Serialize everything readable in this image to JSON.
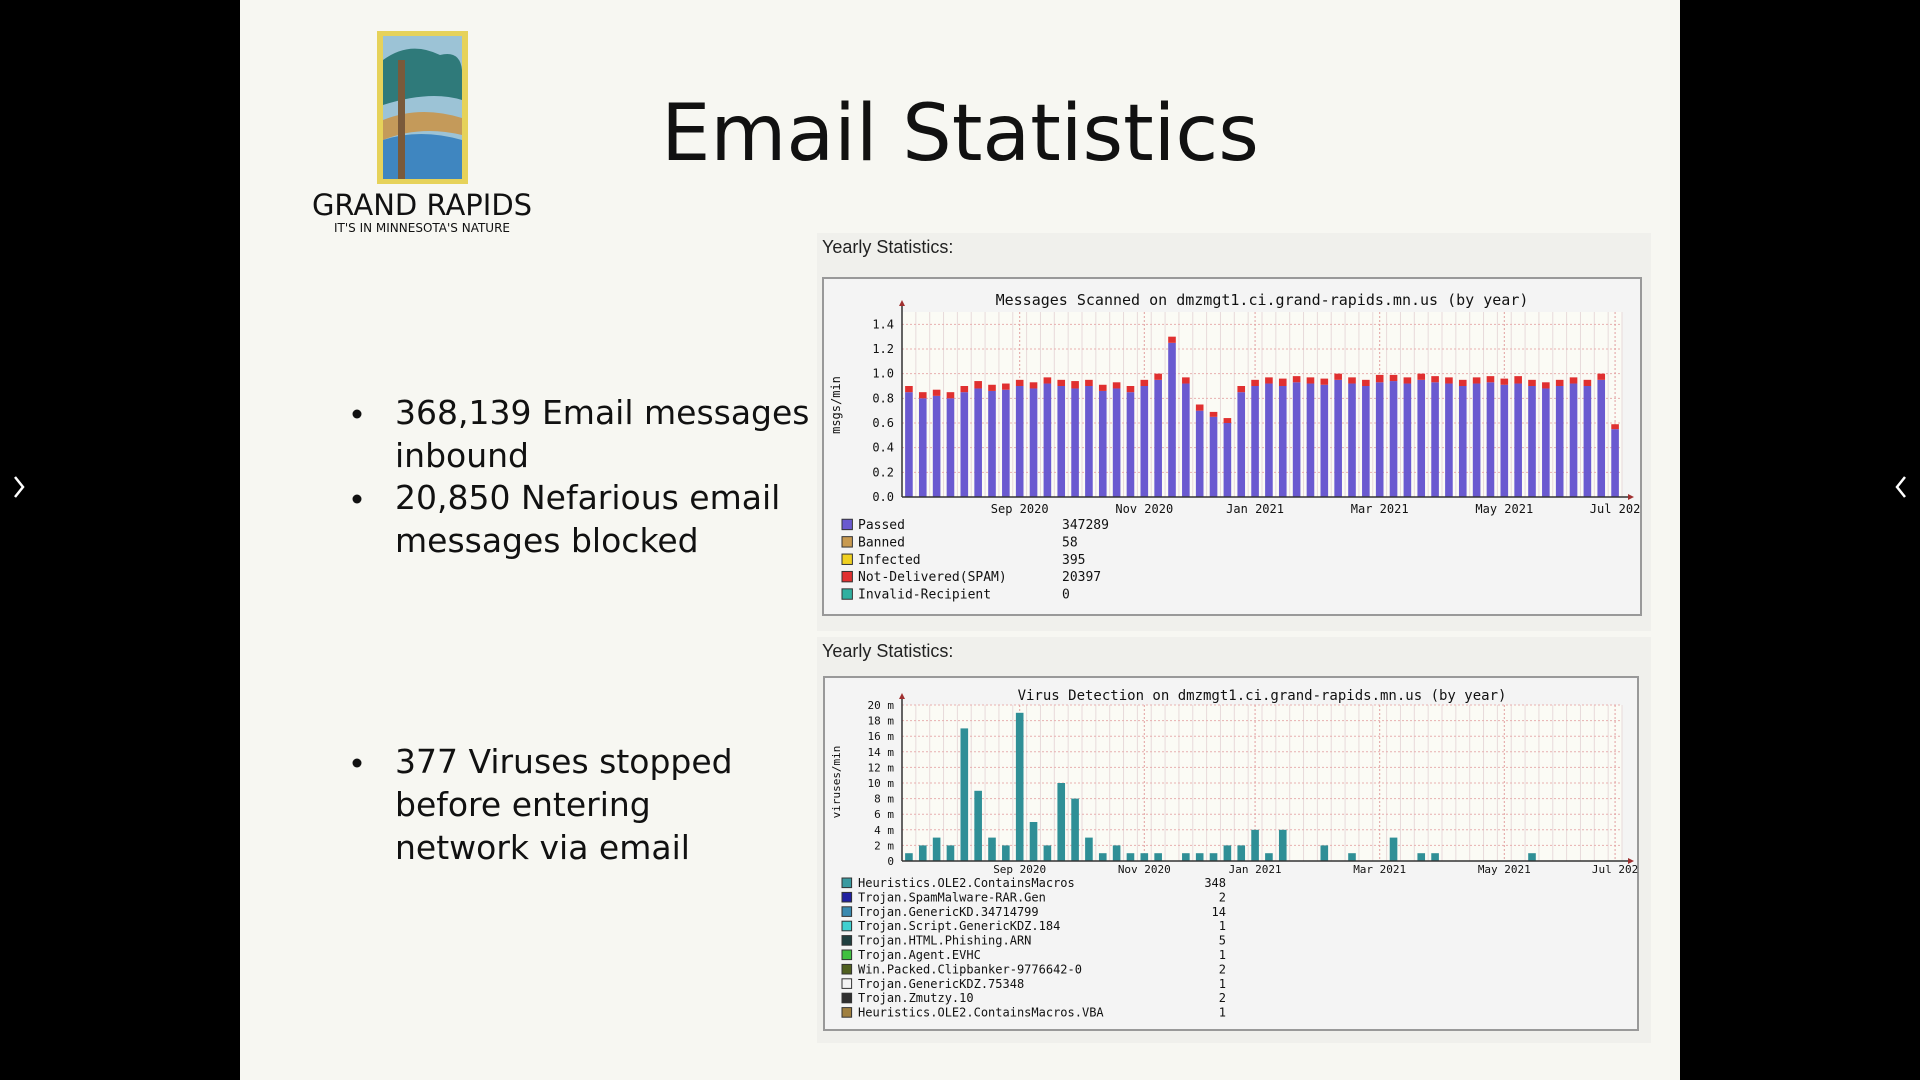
{
  "slide": {
    "title": "Email Statistics",
    "logo": {
      "name": "GRAND RAPIDS",
      "tagline": "IT'S IN MINNESOTA'S NATURE"
    },
    "bullets": [
      [
        "368,139 Email messages",
        "inbound"
      ],
      [
        "20,850 Nefarious email",
        "messages blocked"
      ],
      [
        "377 Viruses stopped",
        "before entering",
        "network via email"
      ]
    ]
  },
  "chart_data": [
    {
      "type": "bar",
      "caption": "Yearly Statistics:",
      "title": "Messages Scanned on dmzmgt1.ci.grand-rapids.mn.us (by year)",
      "y_label": "msgs/min",
      "categories": [
        null,
        null,
        null,
        null,
        null,
        null,
        null,
        null,
        "Sep 2020",
        null,
        null,
        null,
        null,
        null,
        null,
        null,
        null,
        "Nov 2020",
        null,
        null,
        null,
        null,
        null,
        null,
        null,
        "Jan 2021",
        null,
        null,
        null,
        null,
        null,
        null,
        null,
        null,
        "Mar 2021",
        null,
        null,
        null,
        null,
        null,
        null,
        null,
        null,
        "May 2021",
        null,
        null,
        null,
        null,
        null,
        null,
        null,
        "Jul 202"
      ],
      "series": [
        {
          "name": "Passed",
          "color": "#6a5ad0",
          "total": 347289,
          "values": [
            0.85,
            0.8,
            0.82,
            0.8,
            0.85,
            0.88,
            0.86,
            0.87,
            0.9,
            0.88,
            0.92,
            0.9,
            0.88,
            0.9,
            0.86,
            0.88,
            0.85,
            0.9,
            0.95,
            1.25,
            0.92,
            0.7,
            0.65,
            0.6,
            0.85,
            0.9,
            0.92,
            0.9,
            0.93,
            0.92,
            0.91,
            0.95,
            0.92,
            0.9,
            0.93,
            0.94,
            0.92,
            0.95,
            0.93,
            0.92,
            0.9,
            0.92,
            0.93,
            0.91,
            0.92,
            0.9,
            0.88,
            0.9,
            0.92,
            0.9,
            0.95,
            0.55
          ]
        },
        {
          "name": "Banned",
          "color": "#c89a50",
          "total": 58
        },
        {
          "name": "Infected",
          "color": "#f0d020",
          "total": 395
        },
        {
          "name": "Not-Delivered(SPAM)",
          "color": "#e03030",
          "total": 20397,
          "values": [
            0.05,
            0.05,
            0.05,
            0.05,
            0.05,
            0.06,
            0.05,
            0.05,
            0.05,
            0.05,
            0.05,
            0.05,
            0.06,
            0.05,
            0.05,
            0.05,
            0.05,
            0.05,
            0.05,
            0.05,
            0.05,
            0.05,
            0.04,
            0.04,
            0.05,
            0.05,
            0.05,
            0.06,
            0.05,
            0.05,
            0.05,
            0.05,
            0.05,
            0.05,
            0.06,
            0.05,
            0.05,
            0.05,
            0.05,
            0.05,
            0.05,
            0.05,
            0.05,
            0.05,
            0.06,
            0.05,
            0.05,
            0.05,
            0.05,
            0.05,
            0.05,
            0.04
          ]
        },
        {
          "name": "Invalid-Recipient",
          "color": "#30b0a0",
          "total": 0
        }
      ],
      "ylim": [
        0,
        1.5
      ],
      "yticks": [
        {
          "value": 0,
          "label": "0.0"
        },
        0.2,
        0.4,
        0.6,
        0.8,
        {
          "value": 1,
          "label": "1.0"
        },
        1.2,
        1.4
      ],
      "grid": true
    },
    {
      "type": "bar",
      "caption": "Yearly Statistics:",
      "title": "Virus Detection on dmzmgt1.ci.grand-rapids.mn.us (by year)",
      "y_label": "viruses/min",
      "color": "#2f8f96",
      "categories": [
        null,
        null,
        null,
        null,
        null,
        null,
        null,
        null,
        "Sep 2020",
        null,
        null,
        null,
        null,
        null,
        null,
        null,
        null,
        "Nov 2020",
        null,
        null,
        null,
        null,
        null,
        null,
        null,
        "Jan 2021",
        null,
        null,
        null,
        null,
        null,
        null,
        null,
        null,
        "Mar 2021",
        null,
        null,
        null,
        null,
        null,
        null,
        null,
        null,
        "May 2021",
        null,
        null,
        null,
        null,
        null,
        null,
        null,
        "Jul 202"
      ],
      "values": [
        1,
        2,
        3,
        2,
        17,
        9,
        3,
        2,
        19,
        5,
        2,
        10,
        8,
        3,
        1,
        2,
        1,
        1,
        1,
        0,
        1,
        1,
        1,
        2,
        2,
        4,
        1,
        4,
        0,
        0,
        2,
        0,
        1,
        0,
        0,
        3,
        0,
        1,
        1,
        0,
        0,
        0,
        0,
        0,
        0,
        1,
        0,
        0,
        0,
        0,
        0,
        0
      ],
      "series": [
        {
          "name": "Heuristics.OLE2.ContainsMacros",
          "color": "#3a9aa0",
          "total": 348
        },
        {
          "name": "Trojan.SpamMalware-RAR.Gen",
          "color": "#2020a0",
          "total": 2
        },
        {
          "name": "Trojan.GenericKD.34714799",
          "color": "#3a8ab0",
          "total": 14
        },
        {
          "name": "Trojan.Script.GenericKDZ.184",
          "color": "#40d0d0",
          "total": 1
        },
        {
          "name": "Trojan.HTML.Phishing.ARN",
          "color": "#204040",
          "total": 5
        },
        {
          "name": "Trojan.Agent.EVHC",
          "color": "#40c040",
          "total": 1
        },
        {
          "name": "Win.Packed.Clipbanker-9776642-0",
          "color": "#506020",
          "total": 2
        },
        {
          "name": "Trojan.GenericKDZ.75348",
          "color": "#f4f4f4",
          "total": 1
        },
        {
          "name": "Trojan.Zmutzy.10",
          "color": "#303030",
          "total": 2
        },
        {
          "name": "Heuristics.OLE2.ContainsMacros.VBA",
          "color": "#a08040",
          "total": 1
        }
      ],
      "ylim": [
        0,
        20
      ],
      "yticks": [
        0,
        {
          "value": 2,
          "label": "2 m"
        },
        {
          "value": 4,
          "label": "4 m"
        },
        {
          "value": 6,
          "label": "6 m"
        },
        {
          "value": 8,
          "label": "8 m"
        },
        {
          "value": 10,
          "label": "10 m"
        },
        {
          "value": 12,
          "label": "12 m"
        },
        {
          "value": 14,
          "label": "14 m"
        },
        {
          "value": 16,
          "label": "16 m"
        },
        {
          "value": 18,
          "label": "18 m"
        },
        {
          "value": 20,
          "label": "20 m"
        }
      ],
      "grid": true
    }
  ]
}
